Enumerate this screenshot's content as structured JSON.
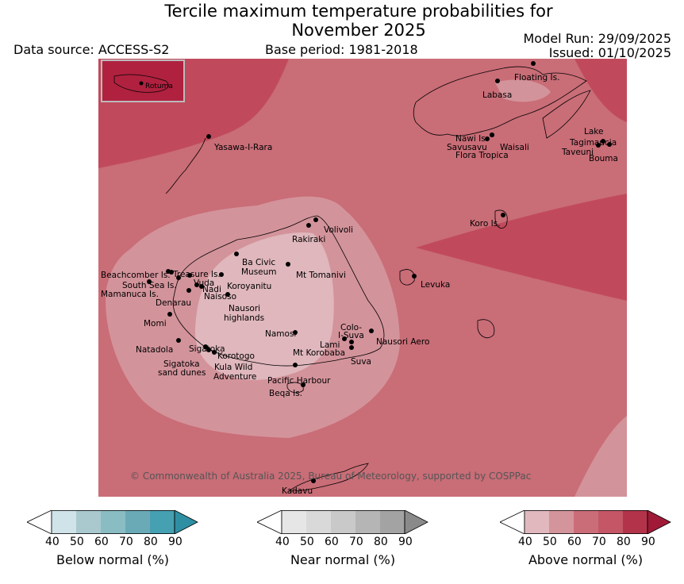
{
  "title_line1": "Tercile maximum temperature probabilities for",
  "title_line2": "November 2025",
  "data_source": "Data source: ACCESS-S2",
  "base_period": "Base period: 1981-2018",
  "model_run": "Model Run: 29/09/2025",
  "issued": "Issued: 01/10/2025",
  "copyright": "© Commonwealth of Australia 2025, Bureau of Meteorology, supported by COSPPac",
  "inset_label": "Rotuma",
  "places": [
    {
      "name": "Floating Is."
    },
    {
      "name": "Labasa"
    },
    {
      "name": "Nawi Is."
    },
    {
      "name": "Savusavu"
    },
    {
      "name": "Waisali"
    },
    {
      "name": "Flora Tropica"
    },
    {
      "name": "Lake"
    },
    {
      "name": "Tagimaucia"
    },
    {
      "name": "Taveuni"
    },
    {
      "name": "Bouma"
    },
    {
      "name": "Yasawa-I-Rara"
    },
    {
      "name": "Koro Is."
    },
    {
      "name": "Volivoli"
    },
    {
      "name": "Rakiraki"
    },
    {
      "name": "Ba Civic"
    },
    {
      "name": "Museum"
    },
    {
      "name": "Mt Tomanivi"
    },
    {
      "name": "Beachcomber Is."
    },
    {
      "name": "Treasure Is."
    },
    {
      "name": "South Sea Is."
    },
    {
      "name": "Vuda"
    },
    {
      "name": "Koroyanitu"
    },
    {
      "name": "Mamanuca Is."
    },
    {
      "name": "Nadi"
    },
    {
      "name": "Naisoso"
    },
    {
      "name": "Denarau"
    },
    {
      "name": "Nausori"
    },
    {
      "name": "highlands"
    },
    {
      "name": "Levuka"
    },
    {
      "name": "Momi"
    },
    {
      "name": "Namosi"
    },
    {
      "name": "Colo-"
    },
    {
      "name": "I-Suva"
    },
    {
      "name": "Lami"
    },
    {
      "name": "Nausori Aero"
    },
    {
      "name": "Natadola"
    },
    {
      "name": "Sigatoka"
    },
    {
      "name": "Mt Korobaba"
    },
    {
      "name": "Korotogo"
    },
    {
      "name": "Suva"
    },
    {
      "name": "Sigatoka"
    },
    {
      "name": "sand dunes"
    },
    {
      "name": "Kula Wild"
    },
    {
      "name": "Adventure"
    },
    {
      "name": "Pacific Harbour"
    },
    {
      "name": "Beqa Is."
    },
    {
      "name": "Kadavu"
    }
  ],
  "colorbars": [
    {
      "label": "Below normal (%)",
      "ticks": [
        "40",
        "50",
        "60",
        "70",
        "80",
        "90"
      ],
      "colors": [
        "#ffffff",
        "#cfe3e8",
        "#a9c9cf",
        "#8abcc4",
        "#6aaab6",
        "#45a0b2",
        "#2e8fa3"
      ]
    },
    {
      "label": "Near normal (%)",
      "ticks": [
        "40",
        "50",
        "60",
        "70",
        "80",
        "90"
      ],
      "colors": [
        "#ffffff",
        "#e6e6e6",
        "#d9d9d9",
        "#c9c9c9",
        "#b5b5b5",
        "#a3a3a3",
        "#8a8a8a"
      ]
    },
    {
      "label": "Above normal (%)",
      "ticks": [
        "40",
        "50",
        "60",
        "70",
        "80",
        "90"
      ],
      "colors": [
        "#ffffff",
        "#e0b8bd",
        "#d4949c",
        "#cb6d78",
        "#c45666",
        "#b3344a",
        "#a01a37"
      ]
    }
  ],
  "map_colors": {
    "level_50": "#dfb7bc",
    "level_60": "#d3939b",
    "level_70": "#c96d77",
    "level_80": "#c04a5b",
    "inset": "#b0213f"
  }
}
